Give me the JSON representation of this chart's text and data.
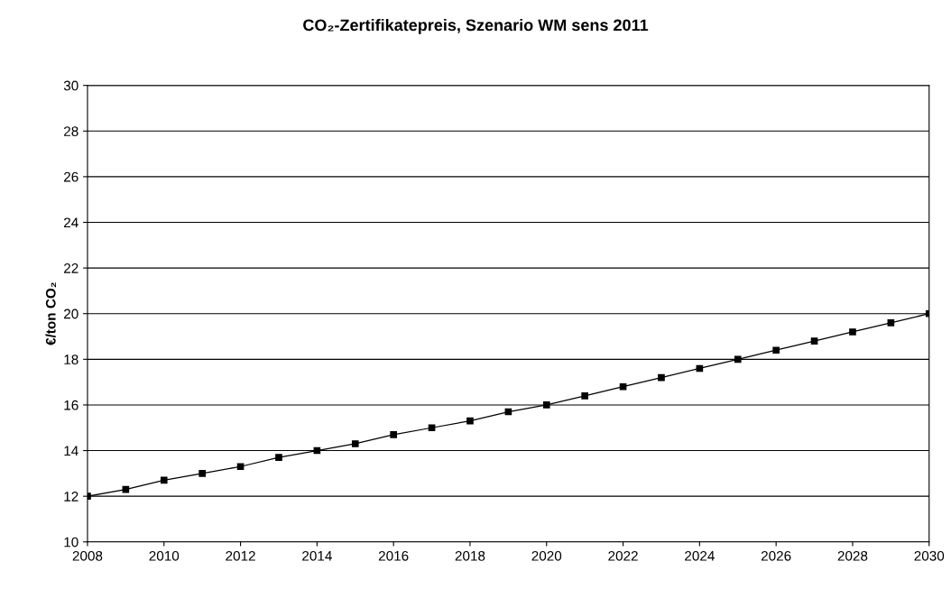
{
  "chart_data": {
    "type": "line",
    "title": "CO₂-Zertifikatepreis, Szenario WM sens 2011",
    "ylabel": "€/ton CO₂",
    "x": [
      2008,
      2009,
      2010,
      2011,
      2012,
      2013,
      2014,
      2015,
      2016,
      2017,
      2018,
      2019,
      2020,
      2021,
      2022,
      2023,
      2024,
      2025,
      2026,
      2027,
      2028,
      2029,
      2030
    ],
    "series": [
      {
        "color": "#000000",
        "values": [
          12,
          12.3,
          12.7,
          13,
          13.3,
          13.7,
          14,
          14.3,
          14.7,
          15,
          15.3,
          15.7,
          16,
          16.4,
          16.8,
          17.2,
          17.6,
          18,
          18.4,
          18.8,
          19.2,
          19.6,
          20
        ]
      }
    ],
    "xlim": [
      2008,
      2030
    ],
    "xticks": [
      2008,
      2010,
      2012,
      2014,
      2016,
      2018,
      2020,
      2022,
      2024,
      2026,
      2028,
      2030
    ],
    "ylim": [
      10,
      30
    ],
    "yticks": [
      10,
      12,
      14,
      16,
      18,
      20,
      22,
      24,
      26,
      28,
      30
    ],
    "grid": "y",
    "marker": "square",
    "line_style": "solid"
  }
}
